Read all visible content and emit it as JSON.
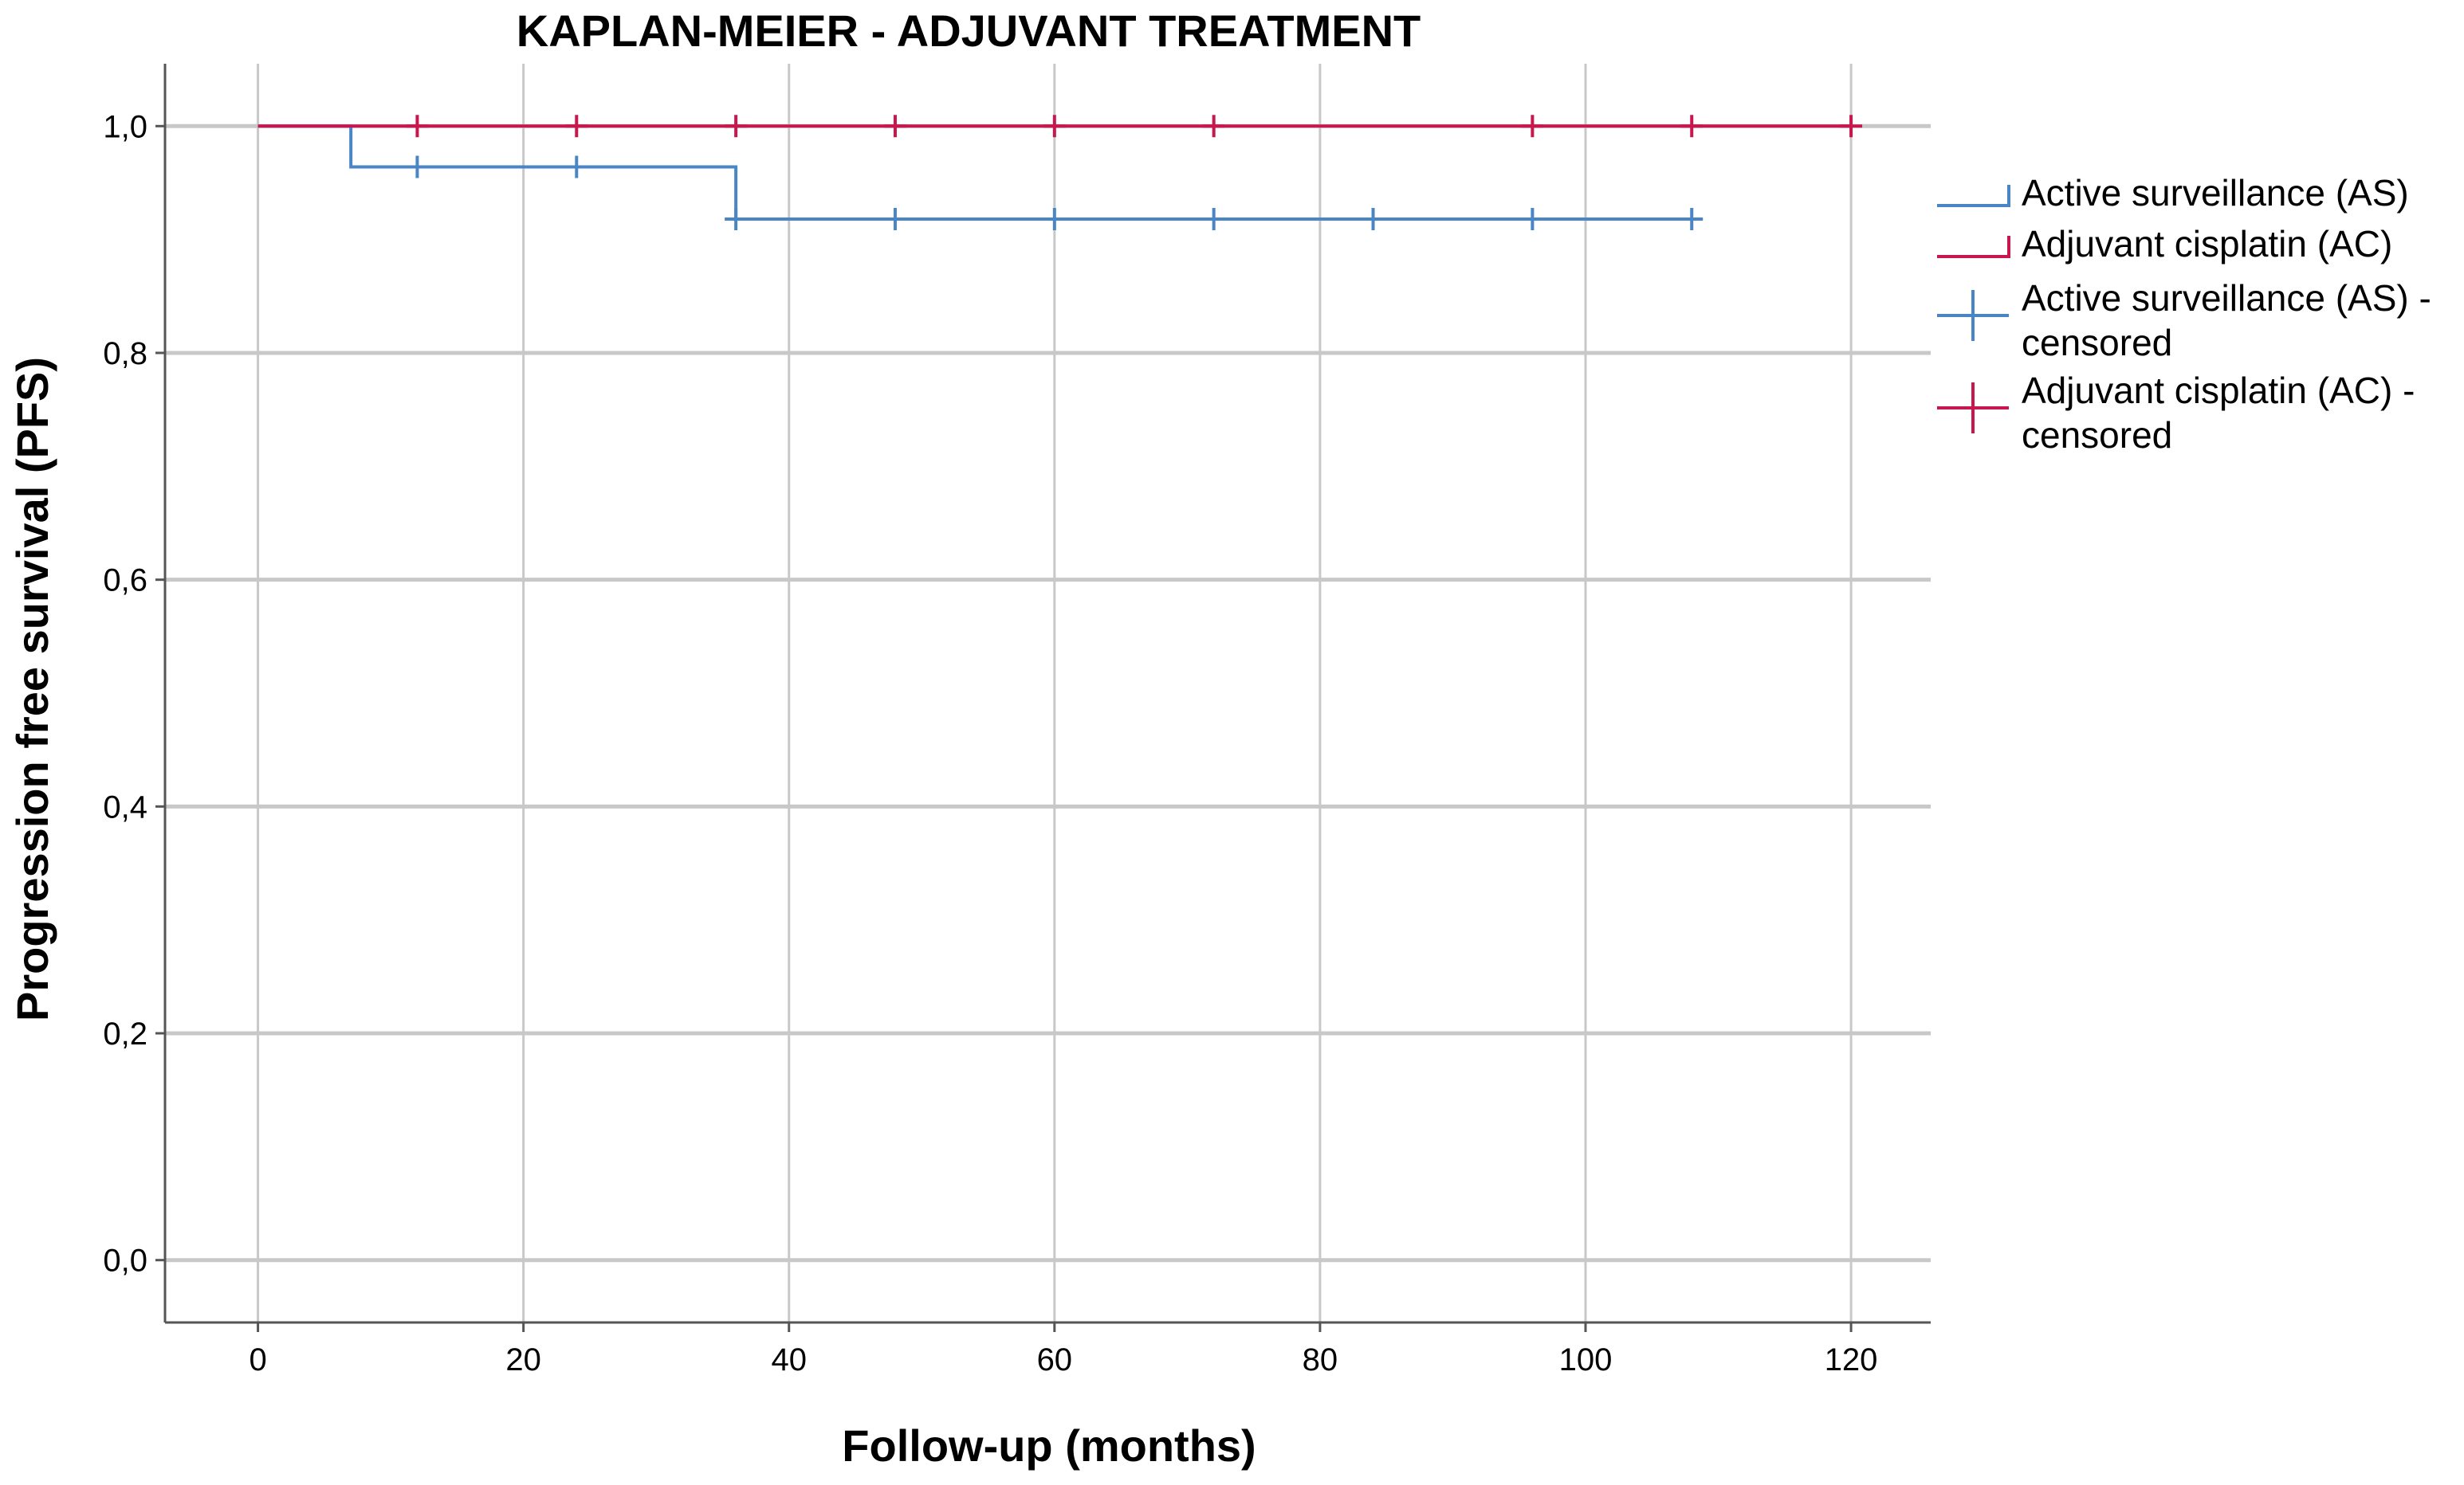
{
  "chart_data": {
    "type": "line",
    "subtype": "kaplan-meier step",
    "title": "KAPLAN-MEIER - ADJUVANT TREATMENT",
    "xlabel": "Follow-up (months)",
    "ylabel": "Progression free survival (PFS)",
    "xlim": [
      -7,
      126
    ],
    "ylim": [
      -0.055,
      1.055
    ],
    "x_ticks": [
      0,
      20,
      40,
      60,
      80,
      100,
      120
    ],
    "x_tick_labels": [
      "0",
      "20",
      "40",
      "60",
      "80",
      "100",
      "120"
    ],
    "y_ticks": [
      0.0,
      0.2,
      0.4,
      0.6,
      0.8,
      1.0
    ],
    "y_tick_labels": [
      "0,0",
      "0,2",
      "0,4",
      "0,6",
      "0,8",
      "1,0"
    ],
    "grid": true,
    "legend_position": "right",
    "series": [
      {
        "name": "Active surveillance (AS)",
        "color": "#4a86c5",
        "steps": [
          [
            0,
            1.0
          ],
          [
            7,
            0.964
          ],
          [
            36,
            0.918
          ],
          [
            108,
            0.918
          ]
        ],
        "censored_name": "Active surveillance (AS) - censored",
        "censored": [
          12,
          24,
          36,
          48,
          60,
          72,
          84,
          96,
          108
        ]
      },
      {
        "name": "Adjuvant cisplatin (AC)",
        "color": "#c8174e",
        "steps": [
          [
            0,
            1.0
          ],
          [
            120,
            1.0
          ]
        ],
        "censored_name": "Adjuvant cisplatin (AC) - censored",
        "censored": [
          12,
          24,
          36,
          48,
          60,
          72,
          96,
          108,
          120
        ]
      }
    ],
    "legend": {
      "entries": [
        {
          "lines": [
            "Active surveillance (AS)"
          ],
          "color": "#4a86c5",
          "marker": "step"
        },
        {
          "lines": [
            "Adjuvant cisplatin (AC)"
          ],
          "color": "#c8174e",
          "marker": "step"
        },
        {
          "lines": [
            "Active surveillance (AS) -",
            "censored"
          ],
          "color": "#4a86c5",
          "marker": "cross"
        },
        {
          "lines": [
            "Adjuvant cisplatin (AC) -",
            "censored"
          ],
          "color": "#c8174e",
          "marker": "cross"
        }
      ]
    },
    "colors": {
      "grid": "#c8c8c8",
      "axis": "#555555"
    }
  }
}
